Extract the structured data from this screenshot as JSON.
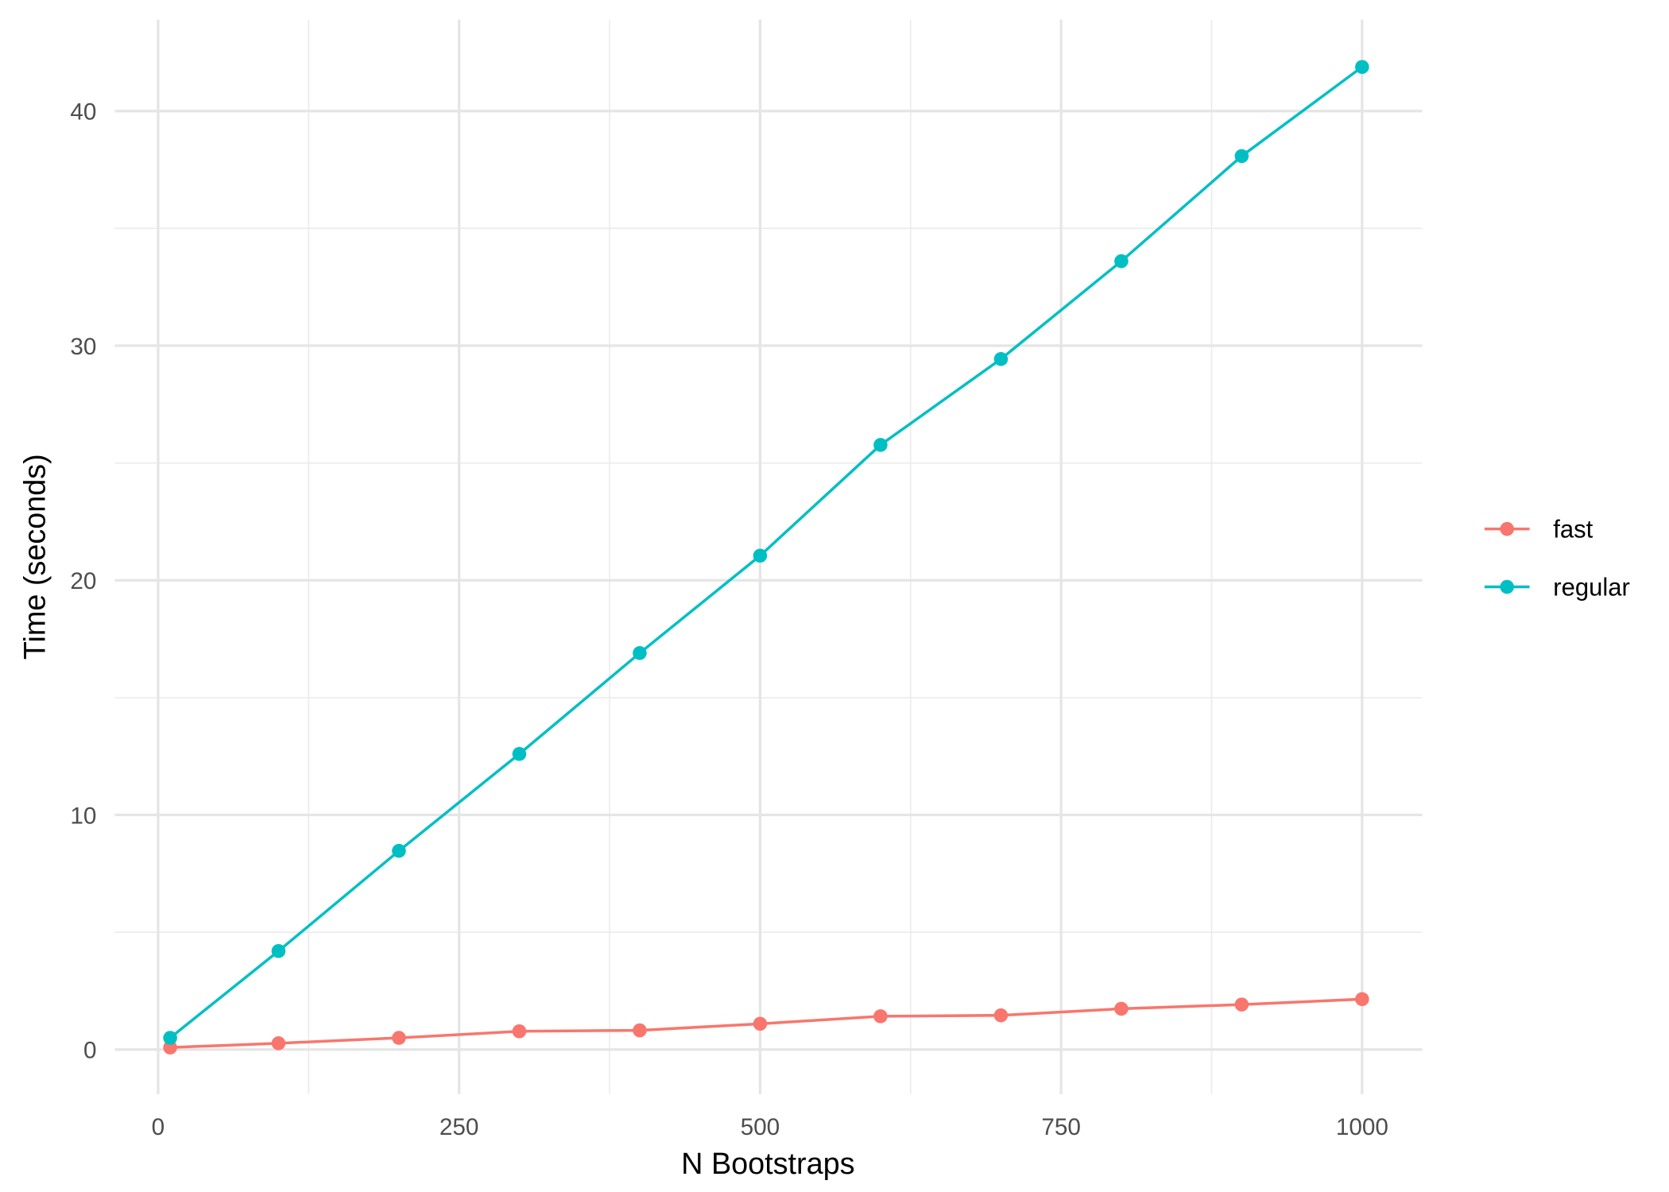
{
  "chart_data": {
    "type": "line",
    "title": "",
    "xlabel": "N Bootstraps",
    "ylabel": "Time (seconds)",
    "xlim": [
      -36,
      1050
    ],
    "ylim": [
      -1.9,
      43.9
    ],
    "x_ticks": [
      0,
      250,
      500,
      750,
      1000
    ],
    "y_ticks": [
      0,
      10,
      20,
      30,
      40
    ],
    "grid": true,
    "legend_position": "right",
    "x": [
      10,
      100,
      200,
      300,
      400,
      500,
      600,
      700,
      800,
      900,
      1000
    ],
    "series": [
      {
        "name": "fast",
        "color": "#F8766D",
        "values": [
          0.09,
          0.27,
          0.5,
          0.78,
          0.82,
          1.1,
          1.42,
          1.46,
          1.74,
          1.92,
          2.15
        ]
      },
      {
        "name": "regular",
        "color": "#00BFC4",
        "values": [
          0.5,
          4.2,
          8.47,
          12.6,
          16.9,
          21.05,
          25.77,
          29.43,
          33.6,
          38.08,
          41.88
        ]
      }
    ]
  }
}
